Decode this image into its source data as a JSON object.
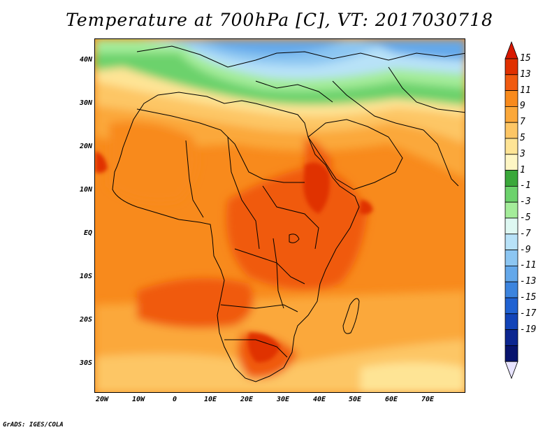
{
  "title": "Temperature at 700hPa [C], VT: 2017030718",
  "credit": "GrADS: IGES/COLA",
  "map": {
    "lon_range": [
      -23,
      80
    ],
    "lat_range": [
      -37,
      45
    ],
    "lat_ticks": [
      "40N",
      "30N",
      "20N",
      "10N",
      "EQ",
      "10S",
      "20S",
      "30S"
    ],
    "lat_tick_values": [
      40,
      30,
      20,
      10,
      0,
      -10,
      -20,
      -30
    ],
    "lon_ticks": [
      "20W",
      "10W",
      "0",
      "10E",
      "20E",
      "30E",
      "40E",
      "50E",
      "60E",
      "70E"
    ],
    "lon_tick_values": [
      -20,
      -10,
      0,
      10,
      20,
      30,
      40,
      50,
      60,
      70
    ]
  },
  "colorbar": {
    "labels": [
      "15",
      "13",
      "11",
      "9",
      "7",
      "5",
      "3",
      "1",
      "-1",
      "-3",
      "-5",
      "-7",
      "-9",
      "-11",
      "-13",
      "-15",
      "-17",
      "-19"
    ],
    "colors": [
      "#e03000",
      "#f05a10",
      "#f88a1c",
      "#fba83a",
      "#fdc665",
      "#fee495",
      "#fef6c4",
      "#3aa83a",
      "#6cd26c",
      "#a4ec9a",
      "#def8f2",
      "#b8e2f8",
      "#8cc6f2",
      "#64a8ea",
      "#3c84de",
      "#2062d2",
      "#1244b8",
      "#0c2690",
      "#08146e"
    ],
    "over_color": "#d81800",
    "under_color": "#e8e4ff"
  }
}
